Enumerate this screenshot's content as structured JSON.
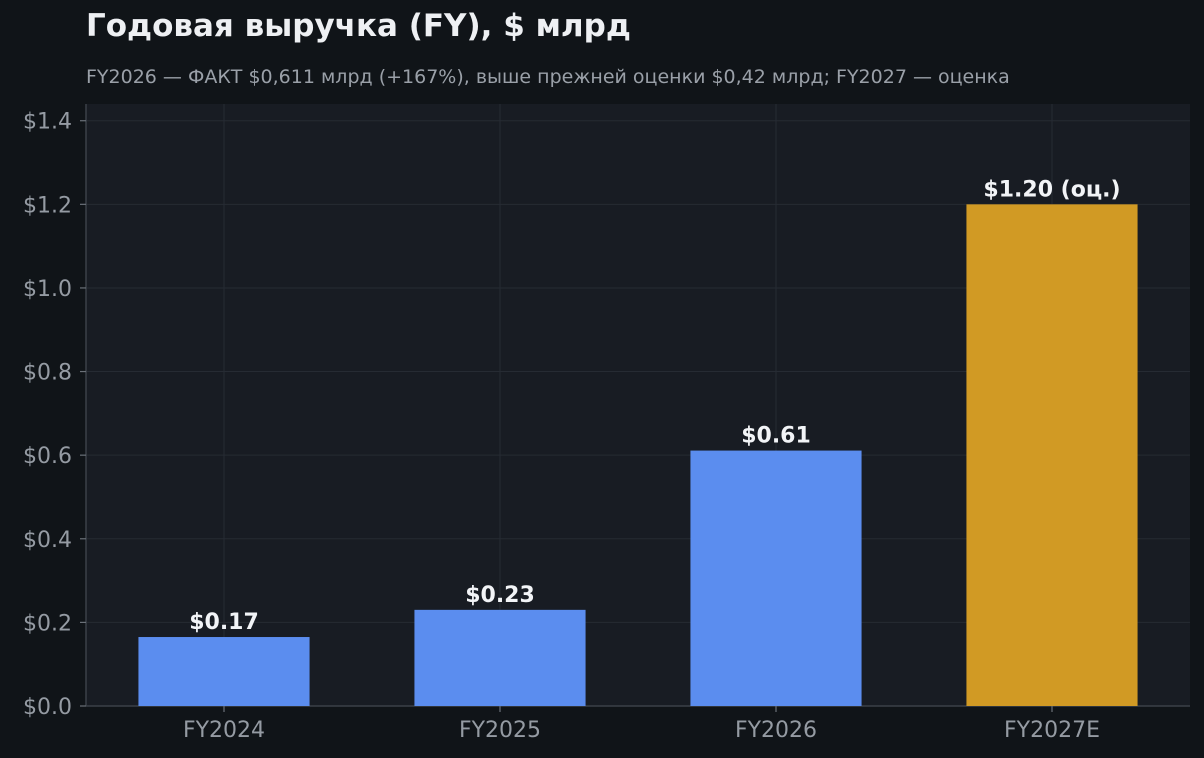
{
  "chart_data": {
    "type": "bar",
    "title": "Годовая выручка (FY), $ млрд",
    "subtitle": "FY2026 — ФАКТ $0,611 млрд (+167%), выше прежней оценки $0,42 млрд; FY2027 — оценка",
    "xlabel": "",
    "ylabel": "",
    "categories": [
      "FY2024",
      "FY2025",
      "FY2026",
      "FY2027E"
    ],
    "values": [
      0.165,
      0.23,
      0.611,
      1.2
    ],
    "data_labels": [
      "$0.17",
      "$0.23",
      "$0.61",
      "$1.20 (оц.)"
    ],
    "bar_colors": [
      "#5b8def",
      "#5b8def",
      "#5b8def",
      "#d19a24"
    ],
    "ylim": [
      0,
      1.44
    ],
    "yticks": [
      0,
      0.2,
      0.4,
      0.6,
      0.8,
      1.0,
      1.2,
      1.4
    ],
    "ytick_labels": [
      "$0.0",
      "$0.2",
      "$0.4",
      "$0.6",
      "$0.8",
      "$1.0",
      "$1.2",
      "$1.4"
    ],
    "grid": true,
    "legend": "none",
    "colors": {
      "background": "#101418",
      "plot_background": "#181c23",
      "grid": "#262b33",
      "actual": "#5b8def",
      "estimate": "#d19a24"
    }
  }
}
